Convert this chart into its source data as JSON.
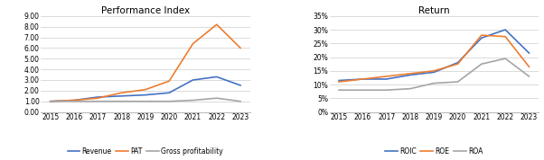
{
  "years": [
    2015,
    2016,
    2017,
    2018,
    2019,
    2020,
    2021,
    2022,
    2023
  ],
  "left": {
    "title": "Performance Index",
    "revenue": [
      1.0,
      1.1,
      1.4,
      1.5,
      1.6,
      1.8,
      3.0,
      3.3,
      2.5
    ],
    "pat": [
      1.0,
      1.1,
      1.3,
      1.8,
      2.1,
      2.9,
      6.4,
      8.2,
      6.0
    ],
    "gross": [
      1.0,
      1.0,
      1.0,
      1.0,
      1.0,
      1.0,
      1.1,
      1.3,
      1.0
    ],
    "ylim": [
      0,
      9.0
    ],
    "yticks": [
      0.0,
      1.0,
      2.0,
      3.0,
      4.0,
      5.0,
      6.0,
      7.0,
      8.0,
      9.0
    ],
    "legend": [
      "Revenue",
      "PAT",
      "Gross profitability"
    ],
    "colors": [
      "#4472C4",
      "#ED7D31",
      "#A5A5A5"
    ]
  },
  "right": {
    "title": "Return",
    "roic": [
      11.5,
      12.0,
      12.0,
      13.5,
      14.5,
      18.0,
      27.0,
      30.0,
      21.5
    ],
    "roe": [
      11.0,
      12.0,
      13.0,
      14.0,
      15.0,
      17.5,
      28.0,
      27.5,
      16.5
    ],
    "roa": [
      8.0,
      8.0,
      8.0,
      8.5,
      10.5,
      11.0,
      17.5,
      19.5,
      13.0
    ],
    "ylim": [
      0,
      35
    ],
    "yticks": [
      0,
      5,
      10,
      15,
      20,
      25,
      30,
      35
    ],
    "legend": [
      "ROIC",
      "ROE",
      "ROA"
    ],
    "colors": [
      "#4472C4",
      "#ED7D31",
      "#A5A5A5"
    ]
  },
  "bg_color": "#FFFFFF",
  "title_fontsize": 7.5,
  "tick_fontsize": 5.5,
  "legend_fontsize": 5.5,
  "line_width": 1.2
}
